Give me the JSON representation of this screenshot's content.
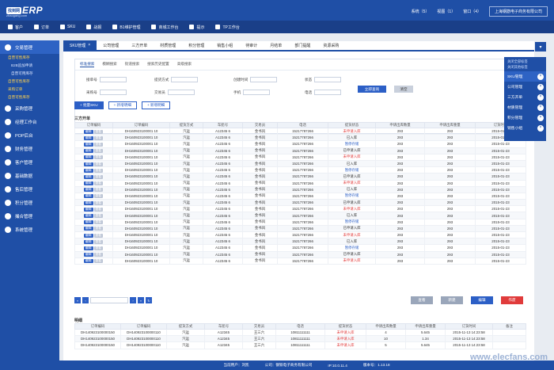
{
  "app": {
    "logo_badge": "找到网",
    "logo_text": "ERP",
    "logo_sub": "zhaogang.com",
    "top_links": [
      "系统（5）",
      "视图（1）",
      "窗口（4）"
    ],
    "company": "上海钢筋电子商务有限公司"
  },
  "menubar": [
    "客户",
    "订单",
    "SKU",
    "战报",
    "B1维护管理",
    "商城工作台",
    "提示",
    "TP工作台"
  ],
  "sidebar": {
    "items": [
      {
        "label": "交易管理",
        "active": true
      },
      {
        "label": "采购管理"
      },
      {
        "label": "经理工作台"
      },
      {
        "label": "POP后台"
      },
      {
        "label": "财务管理"
      },
      {
        "label": "客户管理"
      },
      {
        "label": "基础数据"
      },
      {
        "label": "售后管理"
      },
      {
        "label": "积分管理"
      },
      {
        "label": "撮合管理"
      },
      {
        "label": "系统管理"
      }
    ],
    "subs": [
      "自营可售库存",
      "B2B追加申请",
      "自营可用库存",
      "自营可售库存",
      "采购订单",
      "自营可售库存"
    ]
  },
  "tabs": [
    {
      "label": "SKU管理",
      "active": true
    },
    {
      "label": "公司管理"
    },
    {
      "label": "三方开单"
    },
    {
      "label": "材质管理"
    },
    {
      "label": "积分管理"
    },
    {
      "label": "销售小组"
    },
    {
      "label": "待审计"
    },
    {
      "label": "月结单"
    },
    {
      "label": "部门提醒"
    },
    {
      "label": "资源采购"
    }
  ],
  "filter": {
    "sub_tabs": [
      "标准搜索",
      "模糊搜索",
      "街道搜索",
      "搜索历史配置",
      "高级搜索"
    ],
    "labels": [
      "接单号",
      "提货方式",
      "创建时间",
      "状态",
      "采购号",
      "交易员",
      "手机",
      "电话"
    ],
    "query_label": "立即查询",
    "reset_label": "清空"
  },
  "actions": [
    "+ 批量SKU",
    "+ 新增明细",
    "+ 新增明细"
  ],
  "section1": "三方开单",
  "section2": "明细",
  "columns": [
    "订单编码",
    "提货方式",
    "车船号",
    "交易员",
    "电话",
    "提货状态",
    "申请出库数量",
    "申请出库重量",
    "订货时间"
  ],
  "row_btns": {
    "edit": "编辑",
    "detail": "查看"
  },
  "rows": [
    {
      "code": "DH160923100001 10",
      "mode": "汽运",
      "car": "A12345 6",
      "trader": "金书风",
      "phone": "15217787266",
      "status": "未申请入库",
      "status_class": "st-red",
      "qty": "293",
      "weight": "293",
      "time": "2015-01-23"
    },
    {
      "code": "DH160923100001 10",
      "mode": "汽运",
      "car": "A12345 6",
      "trader": "金书风",
      "phone": "15217787266",
      "status": "已入库",
      "status_class": "st-dark",
      "qty": "293",
      "weight": "293",
      "time": "2015-01-23"
    },
    {
      "code": "DH160923100001 10",
      "mode": "汽运",
      "car": "A12345 6",
      "trader": "金书风",
      "phone": "15217787266",
      "status": "暂停存储",
      "status_class": "st-blue",
      "qty": "293",
      "weight": "293",
      "time": "2015-01-23"
    },
    {
      "code": "DH160923100001 10",
      "mode": "汽运",
      "car": "A12345 6",
      "trader": "金书风",
      "phone": "15217787266",
      "status": "已申请入库",
      "status_class": "st-dark",
      "qty": "293",
      "weight": "293",
      "time": "2015-01-23"
    },
    {
      "code": "DH160923100001 10",
      "mode": "汽运",
      "car": "A12345 6",
      "trader": "金书风",
      "phone": "15217787266",
      "status": "未申请入库",
      "status_class": "st-red",
      "qty": "293",
      "weight": "293",
      "time": "2015-01-23"
    },
    {
      "code": "DH160923100001 10",
      "mode": "汽运",
      "car": "A12345 6",
      "trader": "金书风",
      "phone": "15217787266",
      "status": "已入库",
      "status_class": "st-dark",
      "qty": "293",
      "weight": "293",
      "time": "2015-01-23"
    },
    {
      "code": "DH160923100001 10",
      "mode": "汽运",
      "car": "A12345 6",
      "trader": "金书风",
      "phone": "15217787266",
      "status": "暂停存储",
      "status_class": "st-blue",
      "qty": "293",
      "weight": "293",
      "time": "2015-01-23"
    },
    {
      "code": "DH160923100001 10",
      "mode": "汽运",
      "car": "A12345 6",
      "trader": "金书风",
      "phone": "15217787266",
      "status": "已申请入库",
      "status_class": "st-dark",
      "qty": "293",
      "weight": "293",
      "time": "2015-01-23"
    },
    {
      "code": "DH160923100001 10",
      "mode": "汽运",
      "car": "A12345 6",
      "trader": "金书风",
      "phone": "15217787266",
      "status": "未申请入库",
      "status_class": "st-red",
      "qty": "293",
      "weight": "293",
      "time": "2015-01-23"
    },
    {
      "code": "DH160923100001 10",
      "mode": "汽运",
      "car": "A12345 6",
      "trader": "金书风",
      "phone": "15217787266",
      "status": "已入库",
      "status_class": "st-dark",
      "qty": "293",
      "weight": "293",
      "time": "2015-01-23"
    },
    {
      "code": "DH160923100001 10",
      "mode": "汽运",
      "car": "A12345 6",
      "trader": "金书风",
      "phone": "15217787266",
      "status": "暂停存储",
      "status_class": "st-blue",
      "qty": "293",
      "weight": "293",
      "time": "2015-01-23"
    },
    {
      "code": "DH160923100001 10",
      "mode": "汽运",
      "car": "A12345 6",
      "trader": "金书风",
      "phone": "15217787266",
      "status": "已申请入库",
      "status_class": "st-dark",
      "qty": "293",
      "weight": "293",
      "time": "2015-01-23"
    },
    {
      "code": "DH160923100001 10",
      "mode": "汽运",
      "car": "A12345 6",
      "trader": "金书风",
      "phone": "15217787266",
      "status": "未申请入库",
      "status_class": "st-red",
      "qty": "293",
      "weight": "293",
      "time": "2015-01-23"
    },
    {
      "code": "DH160923100001 10",
      "mode": "汽运",
      "car": "A12345 6",
      "trader": "金书风",
      "phone": "15217787266",
      "status": "已入库",
      "status_class": "st-dark",
      "qty": "293",
      "weight": "293",
      "time": "2015-01-23"
    },
    {
      "code": "DH160923100001 10",
      "mode": "汽运",
      "car": "A12345 6",
      "trader": "金书风",
      "phone": "15217787266",
      "status": "暂停存储",
      "status_class": "st-blue",
      "qty": "293",
      "weight": "293",
      "time": "2015-01-23"
    },
    {
      "code": "DH160923100001 10",
      "mode": "汽运",
      "car": "A12345 6",
      "trader": "金书风",
      "phone": "15217787266",
      "status": "已申请入库",
      "status_class": "st-dark",
      "qty": "293",
      "weight": "293",
      "time": "2015-01-23"
    },
    {
      "code": "DH160923100001 10",
      "mode": "汽运",
      "car": "A12345 6",
      "trader": "金书风",
      "phone": "15217787266",
      "status": "未申请入库",
      "status_class": "st-red",
      "qty": "293",
      "weight": "293",
      "time": "2015-01-23"
    },
    {
      "code": "DH160923100001 10",
      "mode": "汽运",
      "car": "A12345 6",
      "trader": "金书风",
      "phone": "15217787266",
      "status": "已入库",
      "status_class": "st-dark",
      "qty": "293",
      "weight": "293",
      "time": "2015-01-23"
    },
    {
      "code": "DH160923100001 10",
      "mode": "汽运",
      "car": "A12345 6",
      "trader": "金书风",
      "phone": "15217787266",
      "status": "暂停存储",
      "status_class": "st-blue",
      "qty": "293",
      "weight": "293",
      "time": "2015-01-23"
    },
    {
      "code": "DH160923100001 10",
      "mode": "汽运",
      "car": "A12345 6",
      "trader": "金书风",
      "phone": "15217787266",
      "status": "已申请入库",
      "status_class": "st-dark",
      "qty": "293",
      "weight": "293",
      "time": "2015-01-23"
    },
    {
      "code": "DH160923100001 10",
      "mode": "汽运",
      "car": "A12345 6",
      "trader": "金书风",
      "phone": "15217787266",
      "status": "未申请入库",
      "status_class": "st-red",
      "qty": "293",
      "weight": "293",
      "time": "2015-01-23"
    }
  ],
  "bottom_buttons": [
    "查看",
    "新建",
    "编辑",
    "作废"
  ],
  "detail_columns": [
    "订单编码",
    "订单编码",
    "提货方式",
    "车船号",
    "交易员",
    "电话",
    "提货状态",
    "申请出库数量",
    "申请出库重量",
    "订货时间",
    "备注"
  ],
  "detail_rows": [
    {
      "a": "DH140923100000150",
      "b": "DH140923100000110",
      "mode": "汽运",
      "car": "A12345",
      "trader": "王三六",
      "phone": "10811111111",
      "status": "未申请入库",
      "qty": "4",
      "weight": "5.645",
      "time": "2015-11-13 14:23:58",
      "note": ""
    },
    {
      "a": "DH140923100000150",
      "b": "DH140923100000110",
      "mode": "汽运",
      "car": "A12345",
      "trader": "王三六",
      "phone": "10811111111",
      "status": "未申请入库",
      "qty": "10",
      "weight": "1.34",
      "time": "2015-11-13 14:23:58",
      "note": ""
    },
    {
      "a": "DH140923100000150",
      "b": "DH140923100000110",
      "mode": "汽运",
      "car": "A12345",
      "trader": "王三六",
      "phone": "10811111111",
      "status": "未申请入库",
      "qty": "5",
      "weight": "5.645",
      "time": "2015-11-13 14:23:58",
      "note": ""
    }
  ],
  "float_panel": {
    "top": [
      "关闭全部标签",
      "关闭其他标签"
    ],
    "items": [
      {
        "label": "SKU管理",
        "active": true
      },
      {
        "label": "公司管理"
      },
      {
        "label": "三方开单"
      },
      {
        "label": "材质管理"
      },
      {
        "label": "积分管理"
      },
      {
        "label": "销售小组"
      }
    ]
  },
  "footer": [
    "当前用户：刘凯",
    "公司：钢铁电子商务有限公司",
    "IP:10.0.11.4",
    "版本号：1.13.18"
  ],
  "watermark": "www.elecfans.com",
  "colors": {
    "primary": "#1f4fa6",
    "accent": "#2c5fc6",
    "danger": "#e03b3b"
  }
}
